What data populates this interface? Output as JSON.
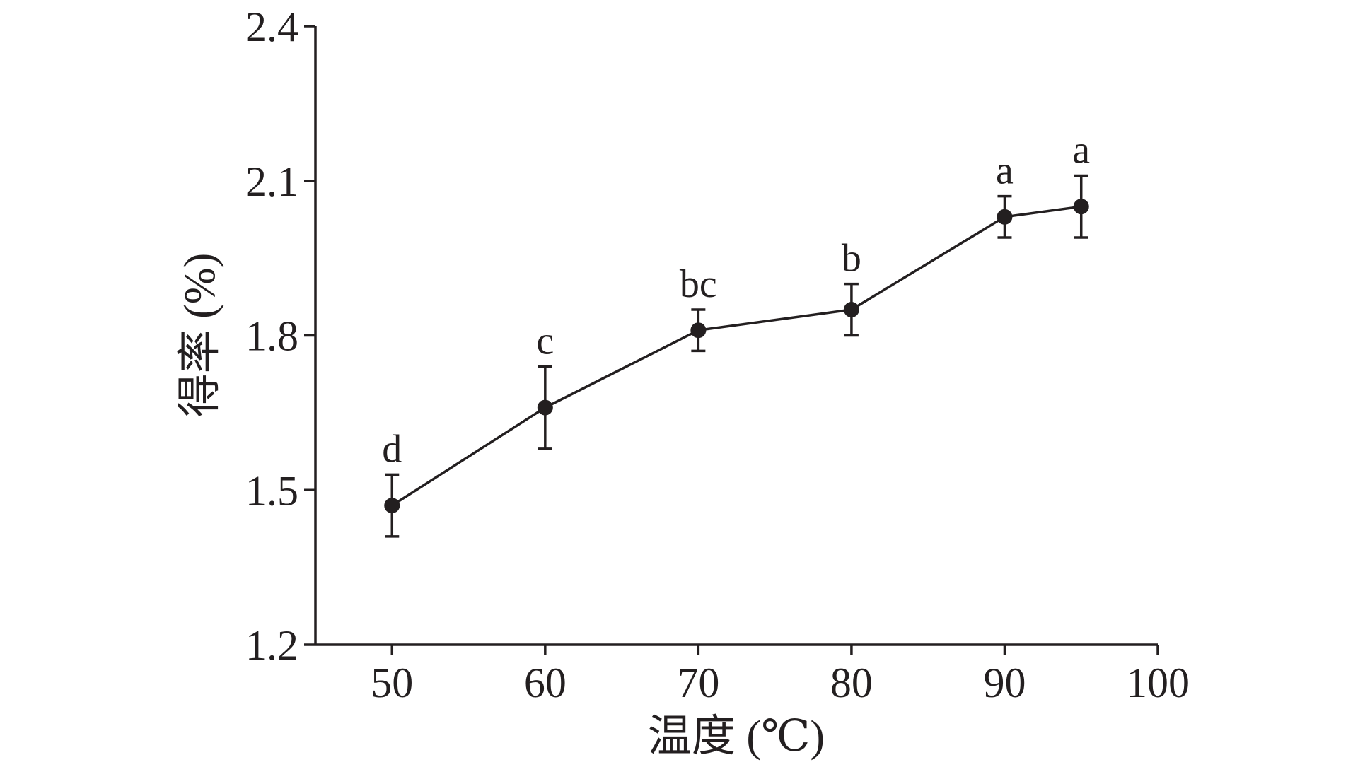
{
  "colors": {
    "ink": "#231f20",
    "background": "#ffffff"
  },
  "chart_data": {
    "type": "line",
    "x": [
      50,
      60,
      70,
      80,
      90,
      95
    ],
    "series": [
      {
        "values": [
          1.47,
          1.66,
          1.81,
          1.85,
          2.03,
          2.05
        ],
        "error": [
          0.06,
          0.08,
          0.04,
          0.05,
          0.04,
          0.06
        ],
        "labels": [
          "d",
          "c",
          "bc",
          "b",
          "a",
          "a"
        ]
      }
    ],
    "xlabel": "温度 (℃)",
    "ylabel": "得率 (%)",
    "xlim": [
      45,
      100
    ],
    "ylim": [
      1.2,
      2.4
    ],
    "xticks": [
      50,
      60,
      70,
      80,
      90,
      100
    ],
    "xtick_labels": [
      "50",
      "60",
      "70",
      "80",
      "90",
      "100"
    ],
    "yticks": [
      1.2,
      1.5,
      1.8,
      2.1,
      2.4
    ],
    "ytick_labels": [
      "1.2",
      "1.5",
      "1.8",
      "2.1",
      "2.4"
    ],
    "grid": false
  }
}
